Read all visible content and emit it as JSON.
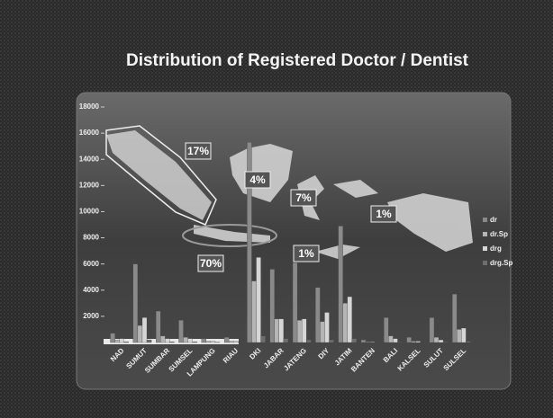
{
  "chart_data": {
    "type": "bar",
    "title": "Distribution of Registered Doctor / Dentist",
    "categories": [
      "NAD",
      "SUMUT",
      "SUMBAR",
      "SUMSEL",
      "LAMPUNG",
      "RIAU",
      "DKI",
      "JABAR",
      "JATENG",
      "DIY",
      "JATIM",
      "BANTEN",
      "BALI",
      "KALSEL",
      "SULUT",
      "SULSEL"
    ],
    "series": [
      {
        "name": "dr",
        "color": "#8a8a8a",
        "values": [
          700,
          6000,
          2400,
          1700,
          300,
          400,
          15300,
          5600,
          6100,
          4200,
          8900,
          200,
          1900,
          400,
          1900,
          3700
        ]
      },
      {
        "name": "dr.Sp",
        "color": "#b5b5b5",
        "values": [
          200,
          1300,
          500,
          400,
          100,
          100,
          4700,
          1800,
          1700,
          1600,
          3000,
          50,
          500,
          100,
          400,
          1000
        ]
      },
      {
        "name": "drg",
        "color": "#d6d6d6",
        "values": [
          300,
          1900,
          300,
          300,
          100,
          100,
          6500,
          1800,
          1800,
          2300,
          3500,
          50,
          300,
          100,
          200,
          1100
        ]
      },
      {
        "name": "drg.Sp",
        "color": "#6e6e6e",
        "values": [
          50,
          200,
          50,
          50,
          20,
          20,
          500,
          300,
          200,
          200,
          300,
          10,
          50,
          20,
          50,
          100
        ]
      }
    ],
    "ylim": [
      0,
      18000
    ],
    "yticks": [
      2000,
      4000,
      6000,
      8000,
      10000,
      12000,
      14000,
      16000,
      18000
    ],
    "grid": false,
    "legend": "right",
    "annotations": [
      "17%",
      "4%",
      "7%",
      "1%",
      "70%",
      "1%"
    ]
  }
}
